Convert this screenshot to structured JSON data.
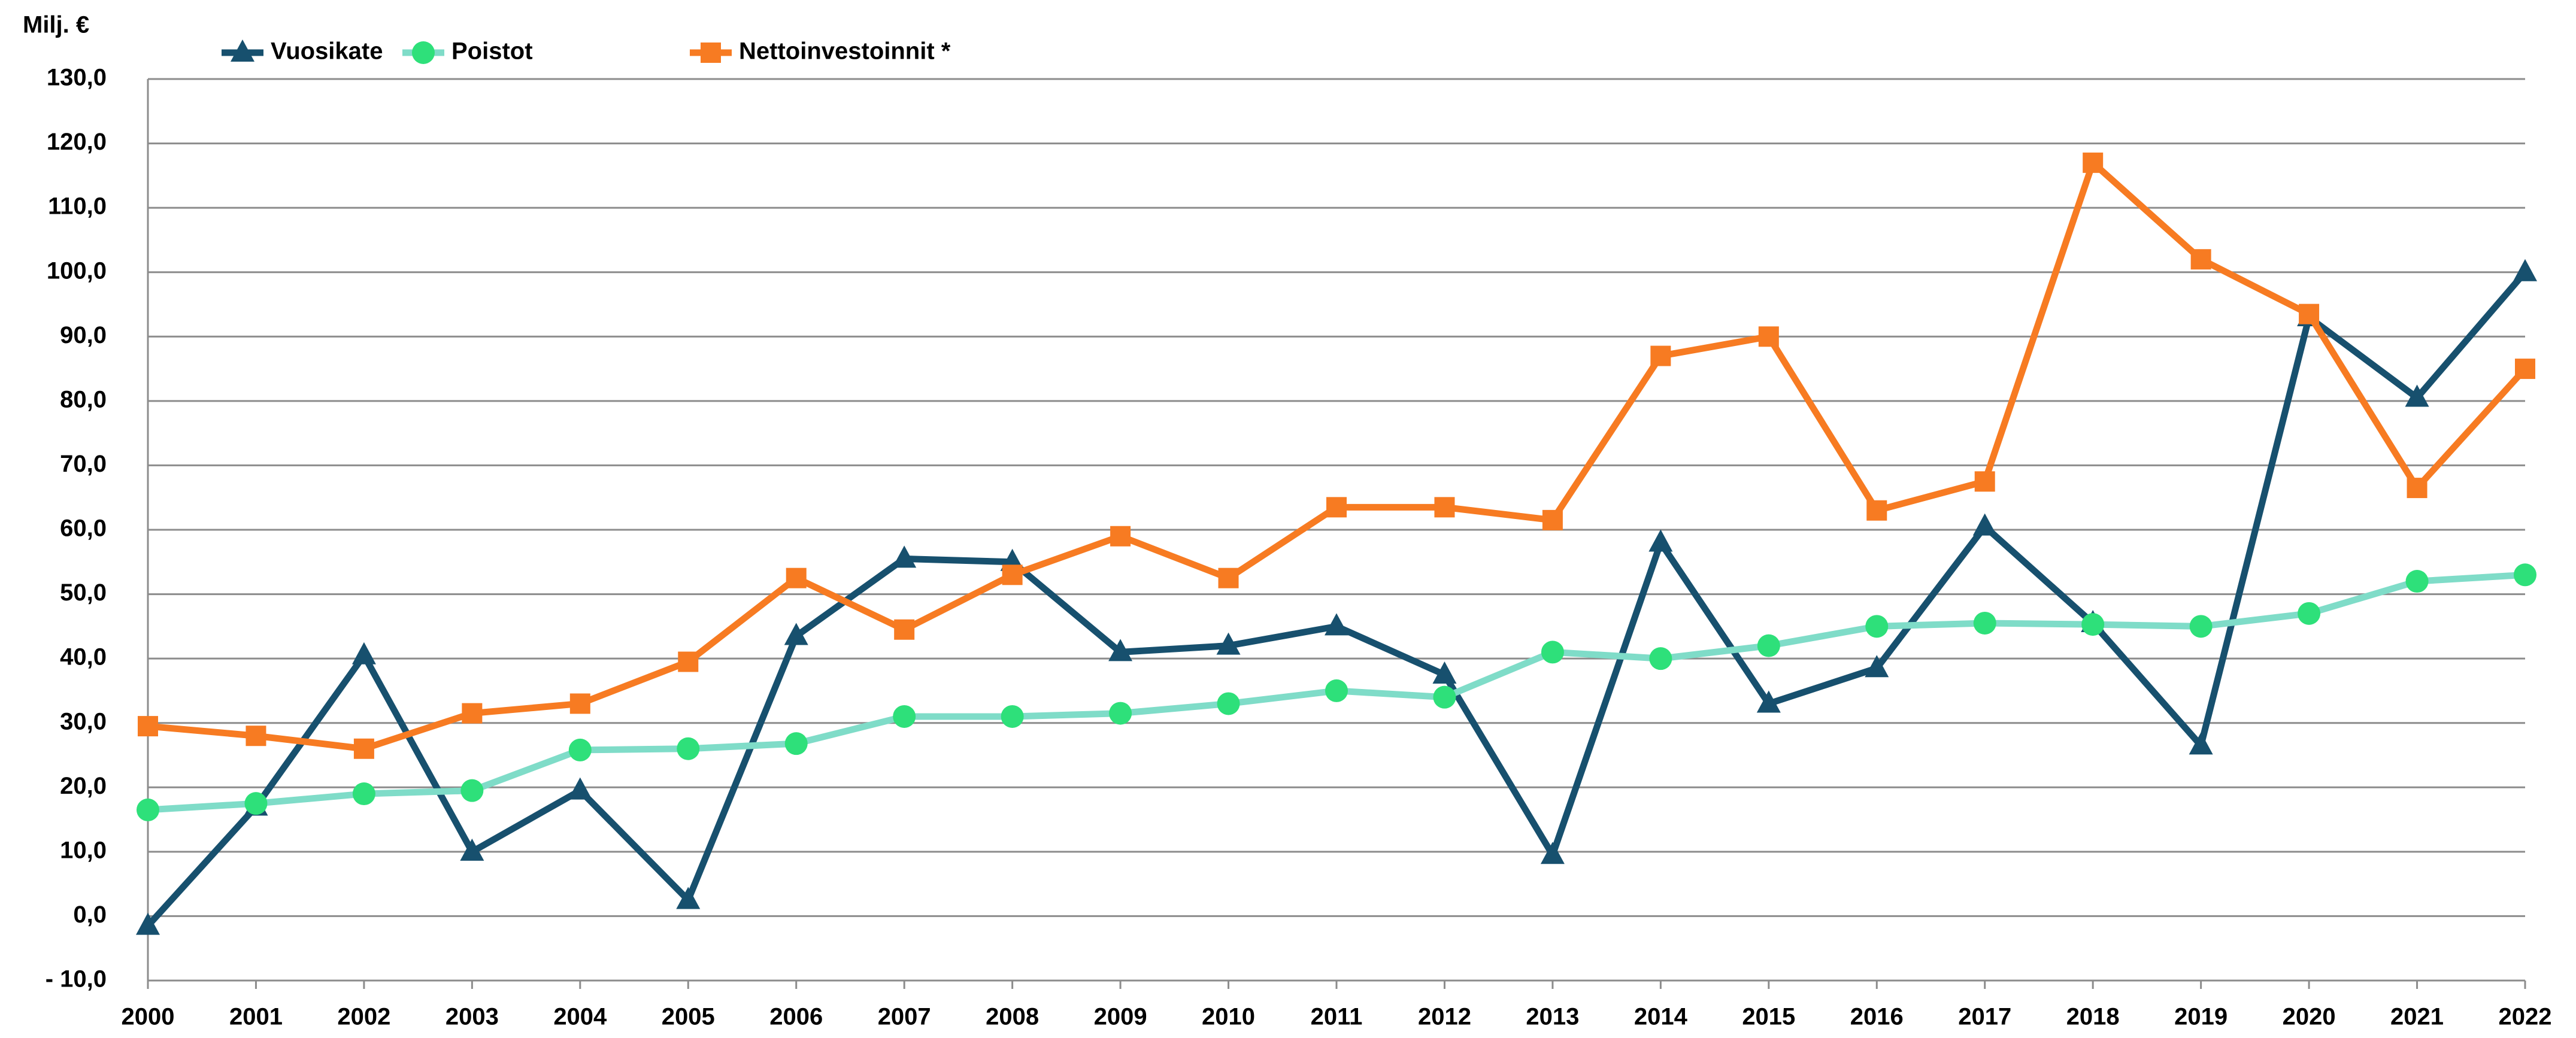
{
  "chart_data": {
    "type": "line",
    "y_label": "Milj. €",
    "categories": [
      "2000",
      "2001",
      "2002",
      "2003",
      "2004",
      "2005",
      "2006",
      "2007",
      "2008",
      "2009",
      "2010",
      "2011",
      "2012",
      "2013",
      "2014",
      "2015",
      "2016",
      "2017",
      "2018",
      "2019",
      "2020",
      "2021",
      "2022"
    ],
    "series": [
      {
        "name": "Vuosikate",
        "color": "#17506e",
        "marker": "triangle",
        "values": [
          -1.5,
          17,
          40.5,
          10,
          19.5,
          2.5,
          43.5,
          55.5,
          55,
          41,
          42,
          45,
          37.5,
          9.5,
          58,
          33,
          38.5,
          60.5,
          45.5,
          26.5,
          93,
          80.5,
          100
        ]
      },
      {
        "name": "Poistot",
        "color": "#7fdcc8",
        "marker_color": "#2ee07a",
        "marker": "circle",
        "values": [
          16.5,
          17.5,
          19,
          19.5,
          25.8,
          26,
          26.8,
          31,
          31,
          31.5,
          33,
          35,
          34,
          41,
          40,
          42,
          45,
          45.5,
          45.3,
          45,
          47,
          52,
          53
        ]
      },
      {
        "name": "Nettoinvestoinnit *",
        "color": "#f77b22",
        "marker": "square",
        "values": [
          29.5,
          28,
          26,
          31.5,
          33,
          39.5,
          52.5,
          44.5,
          53,
          59,
          52.5,
          63.5,
          63.5,
          61.5,
          87,
          90,
          63,
          67.5,
          117,
          102,
          93.5,
          66.5,
          85
        ]
      }
    ],
    "ylim": [
      -10,
      130
    ],
    "yticks": [
      {
        "value": -10,
        "label": "- 10,0"
      },
      {
        "value": 0,
        "label": "0,0"
      },
      {
        "value": 10,
        "label": "10,0"
      },
      {
        "value": 20,
        "label": "20,0"
      },
      {
        "value": 30,
        "label": "30,0"
      },
      {
        "value": 40,
        "label": "40,0"
      },
      {
        "value": 50,
        "label": "50,0"
      },
      {
        "value": 60,
        "label": "60,0"
      },
      {
        "value": 70,
        "label": "70,0"
      },
      {
        "value": 80,
        "label": "80,0"
      },
      {
        "value": 90,
        "label": "90,0"
      },
      {
        "value": 100,
        "label": "100,0"
      },
      {
        "value": 110,
        "label": "110,0"
      },
      {
        "value": 120,
        "label": "120,0"
      },
      {
        "value": 130,
        "label": "130,0"
      }
    ],
    "grid": true,
    "legend": "top"
  }
}
